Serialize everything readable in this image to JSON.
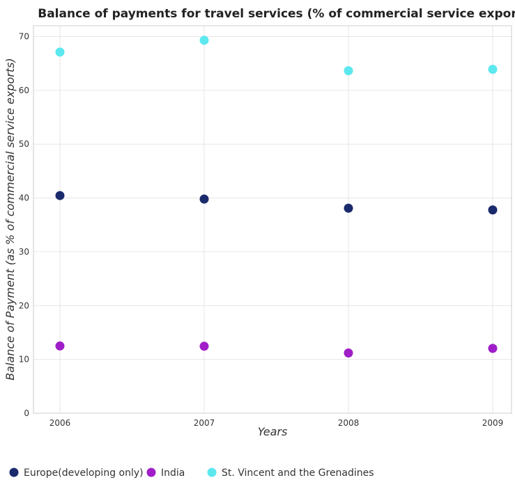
{
  "chart_data": {
    "type": "scatter",
    "title": "Balance of payments for travel services (% of commercial service exports)",
    "xlabel": "Years",
    "ylabel": "Balance of Payment (as % of commercial service exports)",
    "categories": [
      "2006",
      "2007",
      "2008",
      "2009"
    ],
    "ylim": [
      0,
      72
    ],
    "yticks": [
      0,
      10,
      20,
      30,
      40,
      50,
      60,
      70
    ],
    "ytick_labels": [
      "0",
      "10",
      "20",
      "30",
      "40",
      "50",
      "60",
      "70"
    ],
    "grid": true,
    "legend_position": "bottom",
    "series": [
      {
        "name": "Europe(developing only)",
        "color": "#1a2a6c",
        "values": [
          40.45,
          39.8,
          38.1,
          37.78
        ]
      },
      {
        "name": "India",
        "color": "#a01ec8",
        "values": [
          12.5,
          12.45,
          11.2,
          12.05
        ]
      },
      {
        "name": "St. Vincent and the Grenadines",
        "color": "#5ce8ee",
        "values": [
          67.1,
          69.3,
          63.65,
          63.9
        ]
      }
    ]
  }
}
